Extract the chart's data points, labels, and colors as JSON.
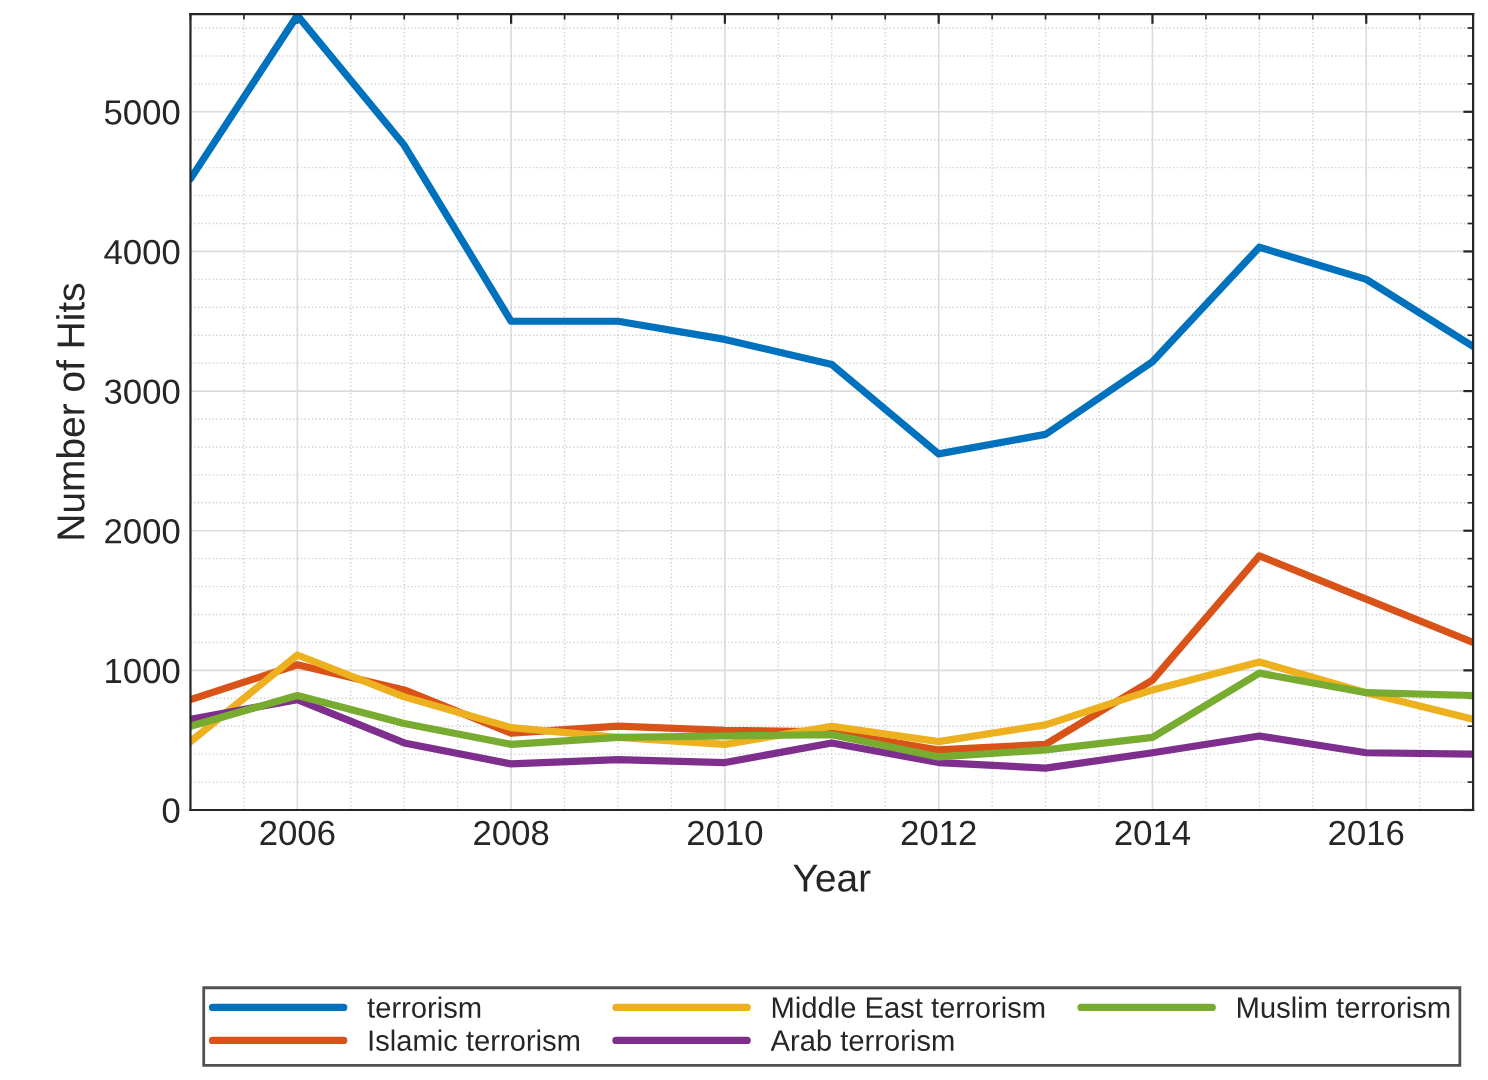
{
  "chart_data": {
    "type": "line",
    "xlabel": "Year",
    "ylabel": "Number of Hits",
    "x": [
      2005,
      2006,
      2007,
      2008,
      2009,
      2010,
      2011,
      2012,
      2013,
      2014,
      2015,
      2016,
      2017
    ],
    "series": [
      {
        "name": "terrorism",
        "color": "#0072bd",
        "values": [
          4520,
          5690,
          4760,
          3500,
          3500,
          3370,
          3190,
          2550,
          2690,
          3210,
          4030,
          3800,
          3320
        ]
      },
      {
        "name": "Islamic terrorism",
        "color": "#d95319",
        "values": [
          790,
          1040,
          860,
          550,
          600,
          570,
          560,
          430,
          470,
          930,
          1820,
          1510,
          1200
        ]
      },
      {
        "name": "Middle East terrorism",
        "color": "#edb120",
        "values": [
          490,
          1110,
          810,
          590,
          520,
          470,
          600,
          490,
          610,
          860,
          1060,
          840,
          650
        ]
      },
      {
        "name": "Arab terrorism",
        "color": "#7e2f8e",
        "values": [
          650,
          790,
          480,
          330,
          360,
          340,
          480,
          340,
          300,
          410,
          530,
          410,
          400
        ]
      },
      {
        "name": "Muslim terrorism",
        "color": "#77ac30",
        "values": [
          600,
          820,
          620,
          470,
          520,
          530,
          540,
          380,
          430,
          520,
          980,
          840,
          820
        ]
      }
    ],
    "xlim": [
      2005,
      2017
    ],
    "ylim": [
      0,
      5700
    ],
    "xticks": [
      2006,
      2008,
      2010,
      2012,
      2014,
      2016
    ],
    "yticks": [
      0,
      1000,
      2000,
      3000,
      4000,
      5000
    ],
    "grid": true,
    "legend": "bottom",
    "line_style": "solid",
    "marker": "none"
  }
}
